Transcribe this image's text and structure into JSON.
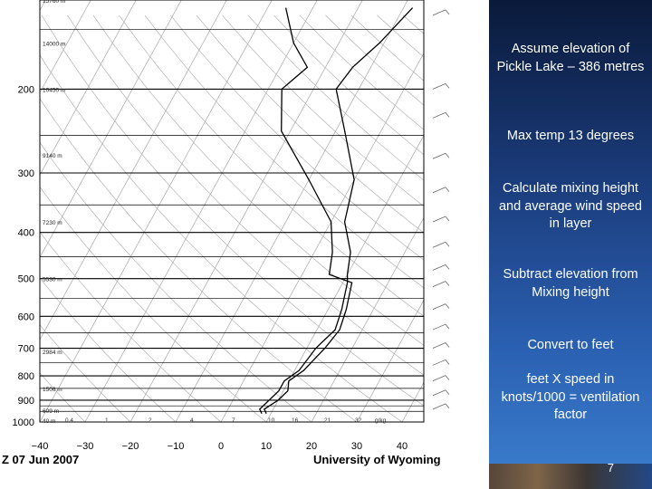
{
  "slide": {
    "bullets": [
      "Assume elevation of Pickle Lake – 386 metres",
      "Max temp 13 degrees",
      "Calculate mixing height and average wind speed in layer",
      "Subtract elevation from Mixing height",
      "Convert to feet",
      "feet X speed in knots/1000 = ventilation factor"
    ],
    "page_number": "7"
  },
  "chart_data": {
    "type": "line",
    "chart": "skew-T log-P sounding",
    "title": "Z 07 Jun 2007",
    "source": "University of Wyoming",
    "y_axis": {
      "scale": "log",
      "unit": "hPa",
      "ticks": [
        200,
        300,
        400,
        500,
        600,
        700,
        800,
        900,
        1000
      ],
      "tick_labels": [
        "200",
        "300",
        "400",
        "500",
        "600",
        "700",
        "800",
        "900",
        "1000"
      ],
      "range": [
        1000,
        130
      ]
    },
    "x_axis": {
      "unit": "°C",
      "ticks": [
        -40,
        -30,
        -20,
        -10,
        0,
        10,
        20,
        30,
        40
      ],
      "tick_labels": [
        "−40",
        "−30",
        "−20",
        "−10",
        "0",
        "10",
        "20",
        "30",
        "40"
      ],
      "range": [
        -40,
        40
      ]
    },
    "height_labels": [
      "15760 m",
      "14000 m",
      "10450 m",
      "9140 m",
      "7230 m",
      "5530 m",
      "2984 m",
      "1506 m",
      "609 m",
      "40 m"
    ],
    "mixing_ratio_labels": [
      "0.4",
      "1",
      "2",
      "4",
      "7",
      "10",
      "16",
      "21",
      "32",
      "g/kg"
    ],
    "grid": true,
    "series": [
      {
        "role": "temperature",
        "color": "#000000",
        "points": [
          [
            9,
            960
          ],
          [
            8,
            940
          ],
          [
            10,
            900
          ],
          [
            11,
            860
          ],
          [
            10,
            820
          ],
          [
            12,
            780
          ],
          [
            14,
            700
          ],
          [
            15,
            640
          ],
          [
            14,
            580
          ],
          [
            12,
            510
          ],
          [
            6,
            490
          ],
          [
            4,
            440
          ],
          [
            0,
            380
          ],
          [
            -10,
            310
          ],
          [
            -22,
            245
          ],
          [
            -27,
            200
          ],
          [
            -24,
            180
          ],
          [
            -30,
            160
          ],
          [
            -36,
            135
          ]
        ]
      },
      {
        "role": "dewpoint",
        "color": "#000000",
        "points": [
          [
            8,
            960
          ],
          [
            7,
            940
          ],
          [
            8,
            900
          ],
          [
            9,
            860
          ],
          [
            9,
            820
          ],
          [
            11,
            780
          ],
          [
            12,
            700
          ],
          [
            14,
            640
          ],
          [
            13,
            580
          ],
          [
            11,
            510
          ],
          [
            10,
            490
          ],
          [
            8,
            440
          ],
          [
            3,
            380
          ],
          [
            0,
            310
          ],
          [
            -8,
            245
          ],
          [
            -15,
            200
          ],
          [
            -14,
            180
          ],
          [
            -11,
            160
          ],
          [
            -8,
            135
          ]
        ]
      }
    ]
  }
}
